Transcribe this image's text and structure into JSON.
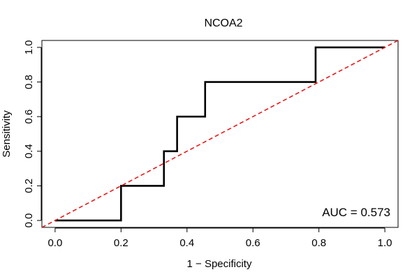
{
  "chart_data": {
    "type": "line",
    "title": "NCOA2",
    "xlabel": "1 − Specificity",
    "ylabel": "Sensitivity",
    "xlim": [
      -0.04,
      1.04
    ],
    "ylim": [
      -0.04,
      1.04
    ],
    "x_ticks": [
      0.0,
      0.2,
      0.4,
      0.6,
      0.8,
      1.0
    ],
    "x_tick_labels": [
      "0.0",
      "0.2",
      "0.4",
      "0.6",
      "0.8",
      "1.0"
    ],
    "y_ticks": [
      0.0,
      0.2,
      0.4,
      0.6,
      0.8,
      1.0
    ],
    "y_tick_labels": [
      "0.0",
      "0.2",
      "0.4",
      "0.6",
      "0.8",
      "1.0"
    ],
    "series": [
      {
        "name": "ROC",
        "color": "#000000",
        "points": [
          [
            0.0,
            0.0
          ],
          [
            0.2,
            0.0
          ],
          [
            0.2,
            0.2
          ],
          [
            0.33,
            0.2
          ],
          [
            0.33,
            0.4
          ],
          [
            0.37,
            0.4
          ],
          [
            0.37,
            0.6
          ],
          [
            0.455,
            0.6
          ],
          [
            0.455,
            0.8
          ],
          [
            0.79,
            0.8
          ],
          [
            0.79,
            1.0
          ],
          [
            1.0,
            1.0
          ]
        ]
      },
      {
        "name": "reference",
        "color": "#e31a1c",
        "style": "dashed",
        "points": [
          [
            -0.04,
            -0.04
          ],
          [
            1.04,
            1.04
          ]
        ]
      }
    ],
    "annotation": "AUC = 0.573",
    "grid": false
  }
}
